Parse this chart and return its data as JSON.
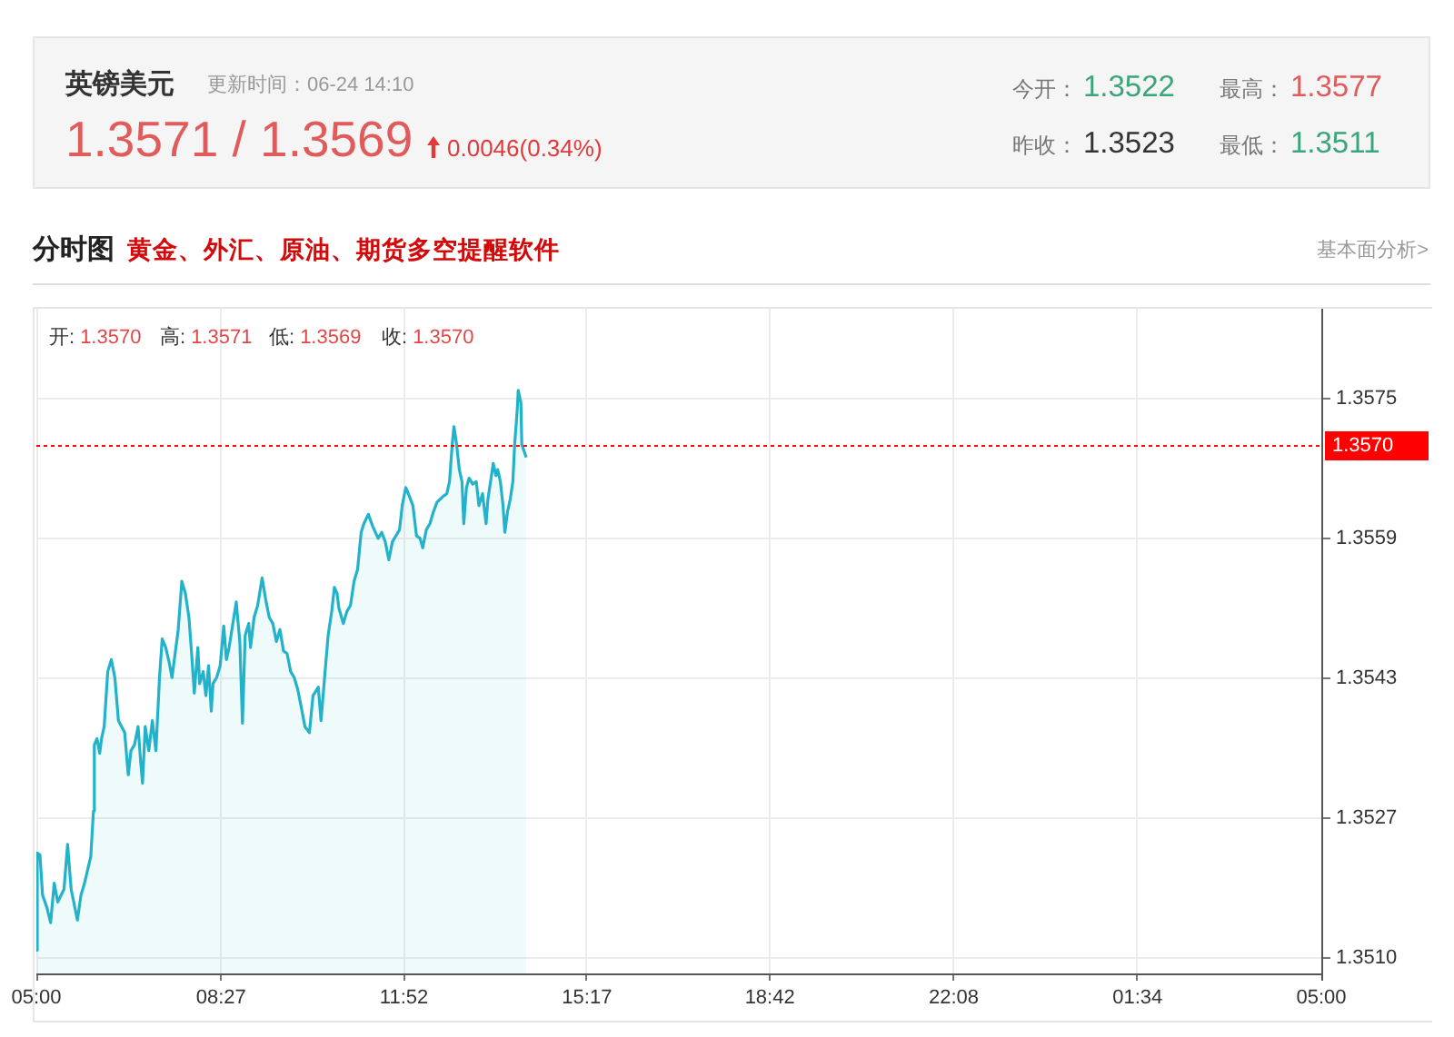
{
  "chart_data": {
    "type": "area",
    "title": "英镑美元",
    "subtitle": "分时图",
    "annotations": [
      "更新时间：06-24 14:10",
      "1.3571 / 1.3569",
      "0.0046(0.34%)",
      "今开：1.3522",
      "最高：1.3577",
      "昨收：1.3523",
      "最低：1.3511",
      "黄金、外汇、原油、期货多空提醒软件",
      "基本面分析>",
      "开:1.3570",
      "高:1.3571",
      "低:1.3569",
      "收:1.3570"
    ],
    "x": [
      "--06-24T05:00",
      "--06-24T05:01",
      "--06-24T05:04",
      "--06-24T05:07",
      "--06-24T05:12",
      "--06-24T05:16",
      "--06-24T05:20",
      "--06-24T05:24",
      "--06-24T05:31",
      "--06-24T05:35",
      "--06-24T05:39",
      "--06-24T05:46",
      "--06-24T05:50",
      "--06-24T05:54",
      "--06-24T06:01",
      "--06-24T06:04",
      "--06-24T06:05",
      "--06-24T06:08",
      "--06-24T06:11",
      "--06-24T06:13",
      "--06-24T06:16",
      "--06-24T06:20",
      "--06-24T06:24",
      "--06-24T06:28",
      "--06-24T06:32",
      "--06-24T06:39",
      "--06-24T06:43",
      "--06-24T06:46",
      "--06-24T06:50",
      "--06-24T06:54",
      "--06-24T06:57",
      "--06-24T06:59",
      "--06-24T07:02",
      "--06-24T07:06",
      "--06-24T07:10",
      "--06-24T07:14",
      "--06-24T07:18",
      "--06-24T07:21",
      "--06-24T07:25",
      "--06-24T07:29",
      "--06-24T07:32",
      "--06-24T07:39",
      "--06-24T07:43",
      "--06-24T07:47",
      "--06-24T07:51",
      "--06-24T07:54",
      "--06-24T07:57",
      "--06-24T08:01",
      "--06-24T08:03",
      "--06-24T08:07",
      "--06-24T08:10",
      "--06-24T08:13",
      "--06-24T08:16",
      "--06-24T08:18",
      "--06-24T08:22",
      "--06-24T08:26",
      "--06-24T08:30",
      "--06-24T08:33",
      "--06-24T08:36",
      "--06-24T08:44",
      "--06-24T08:48",
      "--06-24T08:51",
      "--06-24T08:54",
      "--06-24T08:58",
      "--06-24T09:00",
      "--06-24T09:04",
      "--06-24T09:08",
      "--06-24T09:13",
      "--06-24T09:17",
      "--06-24T09:21",
      "--06-24T09:25",
      "--06-24T09:29",
      "--06-24T09:33",
      "--06-24T09:37",
      "--06-24T09:41",
      "--06-24T09:45",
      "--06-24T09:49",
      "--06-24T09:53",
      "--06-24T09:57",
      "--06-24T10:01",
      "--06-24T10:06",
      "--06-24T10:10",
      "--06-24T10:16",
      "--06-24T10:19",
      "--06-24T10:23",
      "--06-24T10:27",
      "--06-24T10:31",
      "--06-24T10:34",
      "--06-24T10:37",
      "--06-24T10:39",
      "--06-24T10:44",
      "--06-24T10:48",
      "--06-24T10:52",
      "--06-24T10:56",
      "--06-24T11:00",
      "--06-24T11:04",
      "--06-24T11:07",
      "--06-24T11:12",
      "--06-24T11:17",
      "--06-24T11:23",
      "--06-24T11:27",
      "--06-24T11:31",
      "--06-24T11:35",
      "--06-24T11:39",
      "--06-24T11:43",
      "--06-24T11:47",
      "--06-24T11:50",
      "--06-24T11:54",
      "--06-24T11:58",
      "--06-24T12:02",
      "--06-24T12:06",
      "--06-24T12:10",
      "--06-24T12:13",
      "--06-24T12:17",
      "--06-24T12:21",
      "--06-24T12:25",
      "--06-24T12:29",
      "--06-24T12:36",
      "--06-24T12:40",
      "--06-24T12:43",
      "--06-24T12:46",
      "--06-24T12:48",
      "--06-24T12:51",
      "--06-24T12:54",
      "--06-24T12:57",
      "--06-24T12:59",
      "--06-24T13:02",
      "--06-24T13:05",
      "--06-24T13:09",
      "--06-24T13:13",
      "--06-24T13:16",
      "--06-24T13:20",
      "--06-24T13:24",
      "--06-24T13:26",
      "--06-24T13:29",
      "--06-24T13:32",
      "--06-24T13:35",
      "--06-24T13:37",
      "--06-24T13:40",
      "--06-24T13:43",
      "--06-24T13:45",
      "--06-24T13:48",
      "--06-24T13:51",
      "--06-24T13:54",
      "--06-24T13:56",
      "--06-24T13:59",
      "--06-24T14:00",
      "--06-24T14:03",
      "--06-24T14:04",
      "--06-24T14:09"
    ],
    "values": [
      1.35113,
      1.35226,
      1.35224,
      1.35177,
      1.35162,
      1.35145,
      1.35191,
      1.35169,
      1.35184,
      1.35236,
      1.35184,
      1.35148,
      1.35177,
      1.35191,
      1.35222,
      1.35275,
      1.35352,
      1.35359,
      1.35342,
      1.35359,
      1.35373,
      1.35437,
      1.35451,
      1.3543,
      1.3538,
      1.35366,
      1.35317,
      1.35345,
      1.35352,
      1.35373,
      1.35331,
      1.35307,
      1.35373,
      1.35345,
      1.3538,
      1.35345,
      1.3543,
      1.35475,
      1.35465,
      1.35447,
      1.3543,
      1.35486,
      1.35542,
      1.35528,
      1.355,
      1.35458,
      1.35412,
      1.35465,
      1.35423,
      1.35437,
      1.35409,
      1.35444,
      1.35391,
      1.35423,
      1.3543,
      1.35444,
      1.3549,
      1.35451,
      1.35465,
      1.35518,
      1.35472,
      1.35377,
      1.35479,
      1.35493,
      1.35465,
      1.355,
      1.35514,
      1.35546,
      1.35521,
      1.355,
      1.35493,
      1.35472,
      1.35486,
      1.35461,
      1.35458,
      1.35437,
      1.3543,
      1.35416,
      1.35395,
      1.35373,
      1.35366,
      1.35409,
      1.35419,
      1.3538,
      1.3543,
      1.35479,
      1.35507,
      1.35535,
      1.35528,
      1.35511,
      1.35493,
      1.35507,
      1.35514,
      1.35542,
      1.35556,
      1.35599,
      1.35609,
      1.3562,
      1.35606,
      1.35592,
      1.35599,
      1.35588,
      1.35567,
      1.35588,
      1.35595,
      1.35602,
      1.3563,
      1.35651,
      1.35641,
      1.3563,
      1.35595,
      1.35592,
      1.35581,
      1.35602,
      1.35609,
      1.35623,
      1.35634,
      1.35641,
      1.35644,
      1.35658,
      1.35701,
      1.35722,
      1.35701,
      1.35672,
      1.35658,
      1.35609,
      1.35651,
      1.35662,
      1.35655,
      1.35658,
      1.3563,
      1.35644,
      1.35609,
      1.35637,
      1.35658,
      1.35679,
      1.35665,
      1.35672,
      1.35658,
      1.3563,
      1.35599,
      1.35623,
      1.35637,
      1.35658,
      1.35701,
      1.35743,
      1.35764,
      1.3575,
      1.35701,
      1.35686
    ],
    "color": "#22b2ca",
    "marker": "none",
    "xlim": [
      "--06-24T05:00",
      "--06-25T05:00"
    ],
    "xticks": [
      {
        "value": "--06-24T05:00",
        "label": "05:00"
      },
      {
        "value": "--06-24T08:27",
        "label": "08:27"
      },
      {
        "value": "--06-24T11:52",
        "label": "11:52"
      },
      {
        "value": "--06-24T15:17",
        "label": "15:17"
      },
      {
        "value": "--06-24T18:42",
        "label": "18:42"
      },
      {
        "value": "--06-24T22:08",
        "label": "22:08"
      },
      {
        "value": "--06-25T01:34",
        "label": "01:34"
      },
      {
        "value": "--06-25T05:00",
        "label": "05:00"
      }
    ],
    "ylim": [
      1.35086,
      1.35859
    ],
    "yticks": [
      {
        "value": 1.35104,
        "label": "1.3510"
      },
      {
        "value": 1.35267,
        "label": "1.3527"
      },
      {
        "value": 1.35429,
        "label": "1.3543"
      },
      {
        "value": 1.35592,
        "label": "1.3559"
      },
      {
        "value": 1.35754,
        "label": "1.3575"
      }
    ],
    "grid": true,
    "ref_lines": [
      {
        "axis": "y",
        "value": 1.357,
        "label": "1.3570",
        "color": "#ff0000",
        "line_style": "dotted"
      }
    ]
  }
}
